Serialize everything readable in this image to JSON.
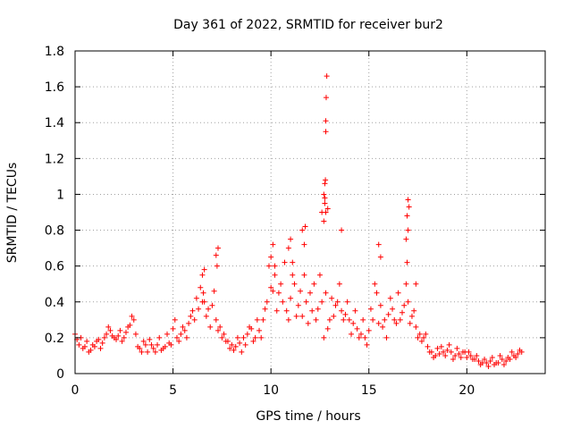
{
  "chart_data": {
    "type": "scatter",
    "title": "Day 361 of 2022, SRMTID for receiver bur2",
    "xlabel": "GPS time / hours",
    "ylabel": "SRMTID / TECUs",
    "xlim": [
      0,
      24
    ],
    "ylim": [
      0,
      1.8
    ],
    "xticks": [
      0,
      5,
      10,
      15,
      20
    ],
    "xtick_labels": [
      "0",
      "5",
      "10",
      "15",
      "20"
    ],
    "yticks": [
      0,
      0.2,
      0.4,
      0.6,
      0.8,
      1.0,
      1.2,
      1.4,
      1.6,
      1.8
    ],
    "ytick_labels": [
      "0",
      "0.2",
      "0.4",
      "0.6",
      "0.8",
      "1",
      "1.2",
      "1.4",
      "1.6",
      "1.8"
    ],
    "grid": true,
    "marker": "+",
    "color": "#ff0000",
    "series": [
      {
        "name": "SRMTID",
        "x": [
          0.0,
          0.2,
          0.4,
          0.6,
          0.8,
          1.0,
          1.2,
          1.4,
          1.6,
          1.8,
          2.0,
          2.2,
          2.4,
          2.6,
          2.8,
          3.0,
          3.2,
          3.4,
          3.6,
          3.8,
          4.0,
          4.2,
          4.4,
          4.6,
          4.8,
          5.0,
          5.2,
          5.4,
          5.6,
          5.8,
          6.0,
          6.2,
          6.4,
          6.6,
          6.8,
          7.0,
          7.2,
          7.4,
          7.6,
          7.8,
          8.0,
          8.2,
          8.4,
          8.6,
          8.8,
          9.0,
          9.2,
          9.4,
          9.6,
          9.8,
          10.0,
          10.2,
          10.4,
          10.6,
          10.8,
          11.0,
          11.2,
          11.4,
          11.6,
          11.8,
          12.0,
          12.2,
          12.4,
          12.6,
          12.8,
          13.0,
          13.2,
          13.4,
          13.6,
          13.8,
          14.0,
          14.2,
          14.4,
          14.6,
          14.8,
          15.0,
          15.2,
          15.4,
          15.6,
          15.8,
          16.0,
          16.2,
          16.4,
          16.6,
          16.8,
          17.0,
          17.2,
          17.4,
          17.6,
          17.8,
          18.0,
          18.2,
          18.4,
          18.6,
          18.8,
          19.0,
          19.2,
          19.4,
          19.6,
          19.8,
          20.0,
          20.2,
          20.4,
          20.6,
          20.8,
          21.0,
          21.2,
          21.4,
          21.6,
          21.8,
          22.0,
          22.2,
          22.4,
          22.6,
          22.8,
          0.1,
          0.3,
          0.5,
          0.7,
          0.9,
          1.1,
          1.3,
          1.5,
          1.7,
          1.9,
          2.1,
          2.3,
          2.5,
          2.7,
          2.9,
          3.1,
          3.3,
          3.5,
          3.7,
          3.9,
          4.1,
          4.3,
          4.5,
          4.7,
          4.9,
          5.1,
          5.3,
          5.5,
          5.7,
          5.9,
          6.1,
          6.3,
          6.5,
          6.7,
          6.9,
          7.1,
          7.3,
          7.5,
          7.7,
          7.9,
          8.1,
          8.3,
          8.5,
          8.7,
          8.9,
          9.1,
          9.3,
          9.5,
          9.7,
          9.9,
          10.1,
          10.3,
          10.5,
          10.7,
          10.9,
          11.1,
          11.3,
          11.5,
          11.7,
          11.9,
          12.1,
          12.3,
          12.5,
          12.7,
          12.9,
          13.1,
          13.3,
          13.5,
          13.7,
          13.9,
          14.1,
          14.3,
          14.5,
          14.7,
          14.9,
          15.1,
          15.3,
          15.5,
          15.7,
          15.9,
          16.1,
          16.3,
          16.5,
          16.7,
          16.9,
          17.1,
          17.3,
          17.5,
          17.7,
          17.9,
          18.1,
          18.3,
          18.5,
          18.7,
          18.9,
          19.1,
          19.3,
          19.5,
          19.7,
          19.9,
          20.1,
          20.3,
          20.5,
          20.7,
          20.9,
          21.1,
          21.3,
          21.5,
          21.7,
          21.9,
          22.1,
          22.3,
          22.5,
          22.7,
          6.5,
          6.55,
          6.6,
          7.2,
          7.25,
          7.3,
          10.0,
          10.1,
          10.2,
          10.9,
          11.0,
          11.1,
          11.6,
          11.7,
          11.75,
          12.7,
          12.75,
          12.78,
          12.8,
          12.8,
          12.82,
          12.85,
          12.75,
          12.8,
          13.6,
          15.5,
          15.6,
          16.9,
          16.95,
          17.0,
          17.05,
          17.0,
          16.95,
          17.4,
          12.6,
          12.7,
          12.9,
          12.75
        ],
        "y": [
          0.22,
          0.16,
          0.14,
          0.18,
          0.13,
          0.15,
          0.19,
          0.17,
          0.22,
          0.24,
          0.2,
          0.21,
          0.18,
          0.23,
          0.27,
          0.3,
          0.15,
          0.12,
          0.16,
          0.19,
          0.14,
          0.16,
          0.13,
          0.15,
          0.17,
          0.25,
          0.2,
          0.22,
          0.24,
          0.28,
          0.35,
          0.42,
          0.48,
          0.4,
          0.36,
          0.38,
          0.3,
          0.26,
          0.22,
          0.18,
          0.16,
          0.15,
          0.17,
          0.2,
          0.22,
          0.25,
          0.2,
          0.24,
          0.3,
          0.4,
          0.48,
          0.55,
          0.45,
          0.4,
          0.35,
          0.42,
          0.5,
          0.38,
          0.32,
          0.4,
          0.45,
          0.5,
          0.36,
          0.4,
          0.45,
          0.3,
          0.32,
          0.4,
          0.35,
          0.33,
          0.3,
          0.28,
          0.25,
          0.22,
          0.2,
          0.24,
          0.3,
          0.45,
          0.38,
          0.3,
          0.33,
          0.36,
          0.28,
          0.3,
          0.38,
          0.4,
          0.32,
          0.26,
          0.22,
          0.2,
          0.15,
          0.12,
          0.1,
          0.11,
          0.12,
          0.13,
          0.12,
          0.1,
          0.11,
          0.12,
          0.09,
          0.1,
          0.08,
          0.07,
          0.06,
          0.06,
          0.07,
          0.05,
          0.06,
          0.08,
          0.07,
          0.08,
          0.1,
          0.11,
          0.12,
          0.19,
          0.2,
          0.15,
          0.12,
          0.16,
          0.18,
          0.14,
          0.2,
          0.26,
          0.21,
          0.19,
          0.24,
          0.2,
          0.26,
          0.32,
          0.22,
          0.14,
          0.18,
          0.12,
          0.16,
          0.12,
          0.2,
          0.14,
          0.22,
          0.16,
          0.3,
          0.18,
          0.26,
          0.2,
          0.32,
          0.3,
          0.36,
          0.4,
          0.32,
          0.26,
          0.46,
          0.24,
          0.2,
          0.18,
          0.14,
          0.13,
          0.2,
          0.12,
          0.16,
          0.26,
          0.18,
          0.3,
          0.2,
          0.36,
          0.6,
          0.46,
          0.35,
          0.5,
          0.62,
          0.3,
          0.55,
          0.32,
          0.46,
          0.55,
          0.28,
          0.35,
          0.3,
          0.55,
          0.2,
          0.25,
          0.42,
          0.38,
          0.5,
          0.3,
          0.4,
          0.22,
          0.35,
          0.2,
          0.3,
          0.16,
          0.36,
          0.5,
          0.28,
          0.26,
          0.2,
          0.42,
          0.3,
          0.45,
          0.34,
          0.5,
          0.28,
          0.35,
          0.2,
          0.18,
          0.22,
          0.12,
          0.09,
          0.14,
          0.15,
          0.1,
          0.16,
          0.08,
          0.14,
          0.09,
          0.12,
          0.12,
          0.08,
          0.1,
          0.05,
          0.08,
          0.04,
          0.09,
          0.06,
          0.1,
          0.05,
          0.09,
          0.12,
          0.09,
          0.13,
          0.55,
          0.45,
          0.58,
          0.66,
          0.6,
          0.7,
          0.65,
          0.72,
          0.6,
          0.7,
          0.75,
          0.62,
          0.8,
          0.72,
          0.82,
          1.0,
          1.06,
          1.08,
          1.35,
          1.41,
          1.54,
          1.66,
          0.95,
          0.9,
          0.8,
          0.72,
          0.65,
          0.75,
          0.88,
          0.97,
          0.93,
          0.8,
          0.62,
          0.5,
          0.9,
          0.85,
          0.92,
          0.98
        ]
      }
    ]
  }
}
